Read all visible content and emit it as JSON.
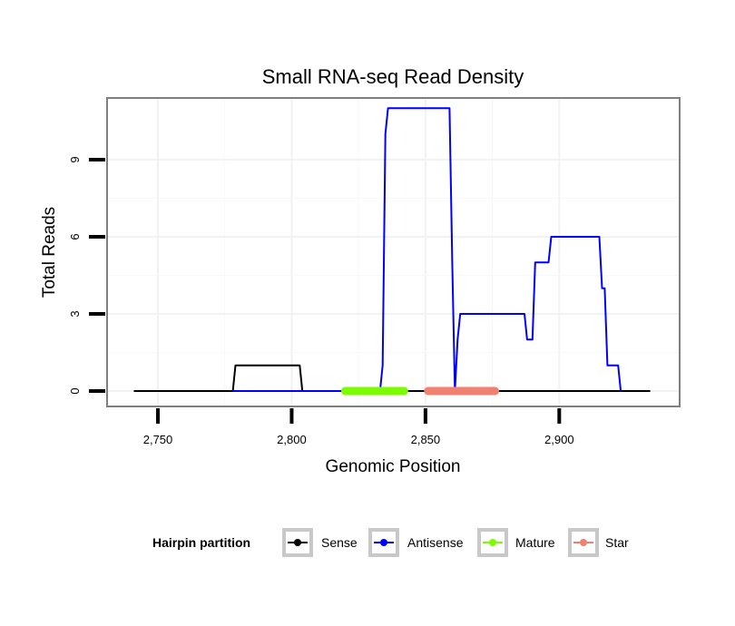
{
  "chart_data": {
    "type": "line",
    "title": "Small RNA-seq Read Density",
    "xlabel": "Genomic Position",
    "ylabel": "Total Reads",
    "xlim": [
      2731,
      2945
    ],
    "ylim": [
      -0.6,
      11.4
    ],
    "x_ticks": [
      2750,
      2800,
      2850,
      2900
    ],
    "x_tick_labels": [
      "2,750",
      "2,800",
      "2,850",
      "2,900"
    ],
    "y_ticks": [
      0,
      3,
      6,
      9
    ],
    "y_tick_labels": [
      "0",
      "3",
      "6",
      "9"
    ],
    "grid": true,
    "legend": {
      "title": "Hairpin partition",
      "position": "bottom",
      "entries": [
        {
          "name": "Sense",
          "color": "#000000"
        },
        {
          "name": "Antisense",
          "color": "#0000ff"
        },
        {
          "name": "Mature",
          "color": "#7cfc00"
        },
        {
          "name": "Star",
          "color": "#f08070"
        }
      ]
    },
    "series": [
      {
        "name": "Sense",
        "color": "#000000",
        "x": [
          2741,
          2778,
          2779,
          2803,
          2804,
          2934
        ],
        "y": [
          0,
          0,
          1,
          1,
          0,
          0
        ]
      },
      {
        "name": "Antisense",
        "color": "#0000ff",
        "x": [
          2778,
          2833,
          2834,
          2835,
          2836,
          2859,
          2860,
          2861,
          2862,
          2863,
          2887,
          2888,
          2890,
          2891,
          2896,
          2897,
          2915,
          2916,
          2917,
          2918,
          2922,
          2923
        ],
        "y": [
          0,
          0,
          1,
          10,
          11,
          11,
          5,
          0,
          2,
          3,
          3,
          2,
          2,
          5,
          5,
          6,
          6,
          4,
          4,
          1,
          1,
          0
        ]
      },
      {
        "name": "Mature",
        "color": "#7cfc00",
        "x": [
          2820,
          2842
        ],
        "y": [
          0,
          0
        ]
      },
      {
        "name": "Star",
        "color": "#f08070",
        "x": [
          2851,
          2876
        ],
        "y": [
          0,
          0
        ]
      }
    ]
  }
}
